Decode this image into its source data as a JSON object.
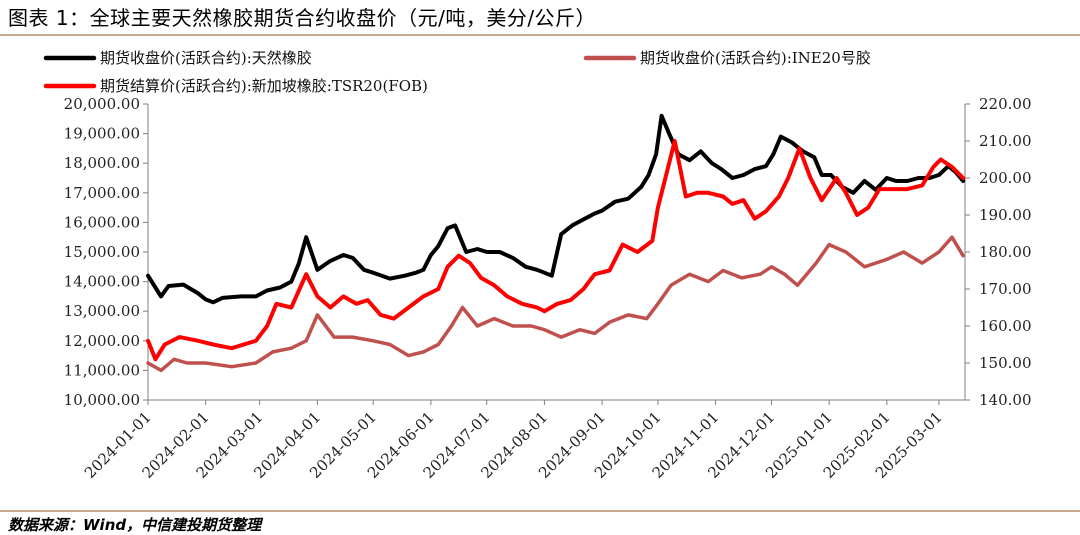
{
  "figure": {
    "title": "图表 1：全球主要天然橡胶期货合约收盘价（元/吨，美分/公斤）",
    "source": "数据来源：Wind，中信建投期货整理"
  },
  "chart_data": {
    "type": "line",
    "x_ticks": [
      "2024-01-01",
      "2024-02-01",
      "2024-03-01",
      "2024-04-01",
      "2024-05-01",
      "2024-06-01",
      "2024-07-01",
      "2024-08-01",
      "2024-09-01",
      "2024-10-01",
      "2024-11-01",
      "2024-12-01",
      "2025-01-01",
      "2025-02-01",
      "2025-03-01"
    ],
    "xlim": [
      "2024-01-01",
      "2025-03-15"
    ],
    "y_left": {
      "ylim": [
        10000,
        20000
      ],
      "ticks": [
        "10,000.00",
        "11,000.00",
        "12,000.00",
        "13,000.00",
        "14,000.00",
        "15,000.00",
        "16,000.00",
        "17,000.00",
        "18,000.00",
        "19,000.00",
        "20,000.00"
      ]
    },
    "y_right": {
      "ylim": [
        140,
        220
      ],
      "ticks": [
        "140.00",
        "150.00",
        "160.00",
        "170.00",
        "180.00",
        "190.00",
        "200.00",
        "210.00",
        "220.00"
      ]
    },
    "legend_position": "top-left",
    "series": [
      {
        "name": "期货收盘价(活跃合约):天然橡胶",
        "color": "#000000",
        "axis": "left",
        "x": [
          "2024-01-01",
          "2024-01-05",
          "2024-01-08",
          "2024-01-12",
          "2024-01-20",
          "2024-01-28",
          "2024-02-01",
          "2024-02-05",
          "2024-02-10",
          "2024-02-20",
          "2024-02-28",
          "2024-03-05",
          "2024-03-12",
          "2024-03-18",
          "2024-03-22",
          "2024-03-26",
          "2024-04-01",
          "2024-04-08",
          "2024-04-15",
          "2024-04-20",
          "2024-04-26",
          "2024-05-01",
          "2024-05-10",
          "2024-05-18",
          "2024-05-24",
          "2024-05-28",
          "2024-06-01",
          "2024-06-05",
          "2024-06-10",
          "2024-06-14",
          "2024-06-20",
          "2024-06-26",
          "2024-07-01",
          "2024-07-08",
          "2024-07-15",
          "2024-07-22",
          "2024-07-28",
          "2024-08-01",
          "2024-08-05",
          "2024-08-10",
          "2024-08-16",
          "2024-08-22",
          "2024-08-28",
          "2024-09-01",
          "2024-09-08",
          "2024-09-15",
          "2024-09-22",
          "2024-09-26",
          "2024-09-30",
          "2024-10-03",
          "2024-10-07",
          "2024-10-12",
          "2024-10-18",
          "2024-10-24",
          "2024-10-30",
          "2024-11-04",
          "2024-11-10",
          "2024-11-16",
          "2024-11-22",
          "2024-11-28",
          "2024-12-02",
          "2024-12-06",
          "2024-12-12",
          "2024-12-18",
          "2024-12-24",
          "2024-12-28",
          "2025-01-02",
          "2025-01-08",
          "2025-01-14",
          "2025-01-20",
          "2025-01-26",
          "2025-02-01",
          "2025-02-06",
          "2025-02-12",
          "2025-02-18",
          "2025-02-24",
          "2025-03-01",
          "2025-03-06",
          "2025-03-10",
          "2025-03-14"
        ],
        "y": [
          14200,
          13800,
          13500,
          13850,
          13900,
          13600,
          13400,
          13300,
          13450,
          13500,
          13500,
          13700,
          13800,
          14000,
          14600,
          15500,
          14400,
          14700,
          14900,
          14800,
          14400,
          14300,
          14100,
          14200,
          14300,
          14400,
          14900,
          15200,
          15800,
          15900,
          15000,
          15100,
          15000,
          15000,
          14800,
          14500,
          14400,
          14300,
          14200,
          15600,
          15900,
          16100,
          16300,
          16400,
          16700,
          16800,
          17200,
          17600,
          18300,
          19600,
          19000,
          18300,
          18100,
          18400,
          18000,
          17800,
          17500,
          17600,
          17800,
          17900,
          18300,
          18900,
          18700,
          18400,
          18200,
          17600,
          17600,
          17200,
          17000,
          17400,
          17100,
          17500,
          17400,
          17400,
          17500,
          17500,
          17600,
          17900,
          17700,
          17400
        ]
      },
      {
        "name": "期货收盘价(活跃合约):INE20号胶",
        "color": "#c0504d",
        "axis": "right",
        "x": [
          "2024-01-01",
          "2024-01-08",
          "2024-01-15",
          "2024-01-22",
          "2024-02-01",
          "2024-02-15",
          "2024-02-28",
          "2024-03-08",
          "2024-03-18",
          "2024-03-26",
          "2024-04-01",
          "2024-04-10",
          "2024-04-20",
          "2024-05-01",
          "2024-05-10",
          "2024-05-20",
          "2024-05-28",
          "2024-06-05",
          "2024-06-12",
          "2024-06-18",
          "2024-06-26",
          "2024-07-05",
          "2024-07-15",
          "2024-07-25",
          "2024-08-01",
          "2024-08-10",
          "2024-08-20",
          "2024-08-28",
          "2024-09-05",
          "2024-09-15",
          "2024-09-25",
          "2024-10-01",
          "2024-10-08",
          "2024-10-18",
          "2024-10-28",
          "2024-11-05",
          "2024-11-15",
          "2024-11-25",
          "2024-12-01",
          "2024-12-08",
          "2024-12-15",
          "2024-12-25",
          "2025-01-01",
          "2025-01-10",
          "2025-01-20",
          "2025-02-01",
          "2025-02-10",
          "2025-02-20",
          "2025-03-01",
          "2025-03-08",
          "2025-03-14"
        ],
        "y": [
          150,
          148,
          151,
          150,
          150,
          149,
          150,
          153,
          154,
          156,
          163,
          157,
          157,
          156,
          155,
          152,
          153,
          155,
          160,
          165,
          160,
          162,
          160,
          160,
          159,
          157,
          159,
          158,
          161,
          163,
          162,
          166,
          171,
          174,
          172,
          175,
          173,
          174,
          176,
          174,
          171,
          177,
          182,
          180,
          176,
          178,
          180,
          177,
          180,
          184,
          179
        ]
      },
      {
        "name": "期货结算价(活跃合约):新加坡橡胶:TSR20(FOB)",
        "color": "#ff0000",
        "axis": "right",
        "x": [
          "2024-01-01",
          "2024-01-05",
          "2024-01-10",
          "2024-01-18",
          "2024-01-28",
          "2024-02-05",
          "2024-02-15",
          "2024-02-28",
          "2024-03-05",
          "2024-03-10",
          "2024-03-18",
          "2024-03-26",
          "2024-04-01",
          "2024-04-08",
          "2024-04-15",
          "2024-04-22",
          "2024-04-28",
          "2024-05-05",
          "2024-05-12",
          "2024-05-20",
          "2024-05-28",
          "2024-06-05",
          "2024-06-10",
          "2024-06-16",
          "2024-06-22",
          "2024-06-28",
          "2024-07-05",
          "2024-07-12",
          "2024-07-20",
          "2024-07-28",
          "2024-08-01",
          "2024-08-08",
          "2024-08-15",
          "2024-08-22",
          "2024-08-28",
          "2024-09-05",
          "2024-09-12",
          "2024-09-20",
          "2024-09-28",
          "2024-10-01",
          "2024-10-05",
          "2024-10-10",
          "2024-10-16",
          "2024-10-22",
          "2024-10-28",
          "2024-11-05",
          "2024-11-10",
          "2024-11-16",
          "2024-11-22",
          "2024-11-28",
          "2024-12-05",
          "2024-12-10",
          "2024-12-16",
          "2024-12-22",
          "2024-12-28",
          "2025-01-05",
          "2025-01-10",
          "2025-01-16",
          "2025-01-22",
          "2025-01-28",
          "2025-02-05",
          "2025-02-12",
          "2025-02-20",
          "2025-02-26",
          "2025-03-02",
          "2025-03-08",
          "2025-03-14"
        ],
        "y": [
          156,
          151,
          155,
          157,
          156,
          155,
          154,
          156,
          160,
          166,
          165,
          174,
          168,
          165,
          168,
          166,
          167,
          163,
          162,
          165,
          168,
          170,
          176,
          179,
          177,
          173,
          171,
          168,
          166,
          165,
          164,
          166,
          167,
          170,
          174,
          175,
          182,
          180,
          183,
          192,
          200,
          210,
          195,
          196,
          196,
          195,
          193,
          194,
          189,
          191,
          195,
          200,
          208,
          200,
          194,
          200,
          196,
          190,
          192,
          197,
          197,
          197,
          198,
          203,
          205,
          203,
          200
        ]
      }
    ]
  }
}
